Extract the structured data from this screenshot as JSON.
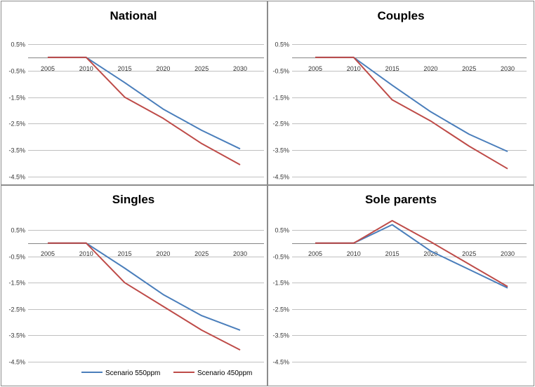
{
  "chart_data": [
    {
      "type": "line",
      "title": "National",
      "x": [
        2005,
        2010,
        2015,
        2020,
        2025,
        2030
      ],
      "x_tick_labels": [
        "2005",
        "2010",
        "2015",
        "2020",
        "2025",
        "2030"
      ],
      "y_tick_labels": [
        "0.5%",
        "-0.5%",
        "-1.5%",
        "-2.5%",
        "-3.5%",
        "-4.5%"
      ],
      "ylim": [
        -4.5,
        0.5
      ],
      "series": [
        {
          "name": "Scenario 550ppm",
          "values": [
            0.0,
            0.0,
            -0.95,
            -1.95,
            -2.75,
            -3.45
          ]
        },
        {
          "name": "Scenario 450ppm",
          "values": [
            0.0,
            0.0,
            -1.5,
            -2.3,
            -3.25,
            -4.05
          ]
        }
      ]
    },
    {
      "type": "line",
      "title": "Couples",
      "x": [
        2005,
        2010,
        2015,
        2020,
        2025,
        2030
      ],
      "x_tick_labels": [
        "2005",
        "2010",
        "2015",
        "2020",
        "2025",
        "2030"
      ],
      "y_tick_labels": [
        "0.5%",
        "-0.5%",
        "-1.5%",
        "-2.5%",
        "-3.5%",
        "-4.5%"
      ],
      "ylim": [
        -4.5,
        0.5
      ],
      "series": [
        {
          "name": "Scenario 550ppm",
          "values": [
            0.0,
            0.0,
            -1.05,
            -2.05,
            -2.9,
            -3.55
          ]
        },
        {
          "name": "Scenario 450ppm",
          "values": [
            0.0,
            0.0,
            -1.6,
            -2.4,
            -3.35,
            -4.2
          ]
        }
      ]
    },
    {
      "type": "line",
      "title": "Singles",
      "x": [
        2005,
        2010,
        2015,
        2020,
        2025,
        2030
      ],
      "x_tick_labels": [
        "2005",
        "2010",
        "2015",
        "2020",
        "2025",
        "2030"
      ],
      "y_tick_labels": [
        "0.5%",
        "-0.5%",
        "-1.5%",
        "-2.5%",
        "-3.5%",
        "-4.5%"
      ],
      "ylim": [
        -4.5,
        0.5
      ],
      "series": [
        {
          "name": "Scenario 550ppm",
          "values": [
            0.0,
            0.0,
            -0.95,
            -1.95,
            -2.75,
            -3.3
          ]
        },
        {
          "name": "Scenario 450ppm",
          "values": [
            0.0,
            0.0,
            -1.5,
            -2.4,
            -3.3,
            -4.05
          ]
        }
      ]
    },
    {
      "type": "line",
      "title": "Sole parents",
      "x": [
        2005,
        2010,
        2015,
        2020,
        2025,
        2030
      ],
      "x_tick_labels": [
        "2005",
        "2010",
        "2015",
        "2020",
        "2025",
        "2030"
      ],
      "y_tick_labels": [
        "0.5%",
        "-0.5%",
        "-1.5%",
        "-2.5%",
        "-3.5%",
        "-4.5%"
      ],
      "ylim": [
        -4.5,
        0.5
      ],
      "series": [
        {
          "name": "Scenario 550ppm",
          "values": [
            0.0,
            0.0,
            0.7,
            -0.3,
            -1.0,
            -1.7
          ]
        },
        {
          "name": "Scenario 450ppm",
          "values": [
            0.0,
            0.0,
            0.85,
            0.05,
            -0.8,
            -1.65
          ]
        }
      ]
    }
  ],
  "legend": {
    "items": [
      {
        "label": "Scenario 550ppm",
        "color": "#4a7ebb"
      },
      {
        "label": "Scenario 450ppm",
        "color": "#be4b48"
      }
    ],
    "placement": "bottom"
  },
  "colors": {
    "series_550": "#4a7ebb",
    "series_450": "#be4b48",
    "gridline": "#c0c0c0",
    "axis": "#868686",
    "frame": "#8c8c8c"
  }
}
